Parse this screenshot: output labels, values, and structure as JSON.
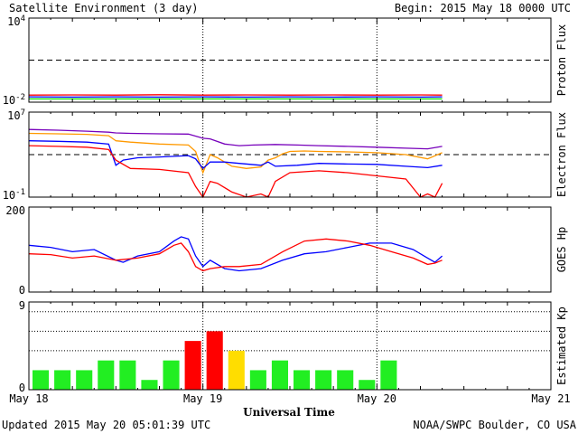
{
  "header": {
    "title": "Satellite Environment (3 day)",
    "begin": "Begin:  2015 May 18 0000 UTC"
  },
  "footer": {
    "updated": "Updated 2015 May 20 05:01:39 UTC",
    "credit": "NOAA/SWPC Boulder, CO USA"
  },
  "chart_data": [
    {
      "type": "line",
      "ylabel": "Proton Flux",
      "scale": "log",
      "ylim": [
        0.01,
        10000
      ],
      "tick_labels": [
        {
          "base": "10",
          "exp": "4",
          "value": 10000
        },
        {
          "base": "10",
          "exp": "-2",
          "value": 0.01
        }
      ],
      "threshold": 10,
      "x_range_hours": [
        0,
        72
      ],
      "series": [
        {
          "color": "#ff0000",
          "x": [
            0,
            6,
            12,
            18,
            24,
            30,
            36,
            42,
            48,
            54,
            57
          ],
          "y": [
            0.032,
            0.033,
            0.032,
            0.034,
            0.032,
            0.033,
            0.032,
            0.033,
            0.032,
            0.033,
            0.032
          ]
        },
        {
          "color": "#0000ff",
          "x": [
            0,
            6,
            12,
            18,
            24,
            30,
            36,
            42,
            48,
            54,
            57
          ],
          "y": [
            0.024,
            0.023,
            0.024,
            0.023,
            0.024,
            0.023,
            0.024,
            0.023,
            0.024,
            0.023,
            0.024
          ]
        },
        {
          "color": "#00dd00",
          "x": [
            0,
            6,
            12,
            18,
            24,
            30,
            36,
            42,
            48,
            54,
            57
          ],
          "y": [
            0.017,
            0.017,
            0.017,
            0.017,
            0.017,
            0.017,
            0.017,
            0.017,
            0.017,
            0.017,
            0.017
          ]
        }
      ]
    },
    {
      "type": "line",
      "ylabel": "Electron Flux",
      "scale": "log",
      "ylim": [
        0.1,
        10000000
      ],
      "tick_labels": [
        {
          "base": "10",
          "exp": "7",
          "value": 10000000
        },
        {
          "base": "10",
          "exp": "-1",
          "value": 0.1
        }
      ],
      "threshold": 1000,
      "x_range_hours": [
        0,
        72
      ],
      "series": [
        {
          "color": "#7700bb",
          "x": [
            0,
            4,
            8,
            11,
            12,
            14,
            18,
            22,
            24,
            25,
            27,
            29,
            31,
            34,
            37,
            40,
            44,
            48,
            52,
            55,
            57
          ],
          "y": [
            230000,
            200000,
            160000,
            130000,
            110000,
            100000,
            90000,
            85000,
            35000,
            30000,
            10000,
            7000,
            8000,
            9000,
            8000,
            7000,
            6000,
            5000,
            4000,
            3500,
            6000
          ]
        },
        {
          "color": "#ff9900",
          "x": [
            0,
            4,
            8,
            11,
            12,
            14,
            18,
            22,
            23,
            24,
            25,
            26,
            28,
            30,
            32,
            33,
            34,
            35,
            36,
            38,
            40,
            44,
            48,
            52,
            55,
            57
          ],
          "y": [
            100000,
            90000,
            80000,
            60000,
            20000,
            15000,
            10000,
            8000,
            2000,
            20,
            1000,
            500,
            80,
            50,
            70,
            300,
            500,
            1200,
            2000,
            2200,
            2000,
            1800,
            1500,
            1000,
            400,
            1500
          ]
        },
        {
          "color": "#0000ff",
          "x": [
            0,
            4,
            8,
            11,
            12,
            13,
            15,
            18,
            22,
            23,
            24,
            25,
            27,
            29,
            32,
            33,
            34,
            37,
            40,
            44,
            48,
            52,
            55,
            57
          ],
          "y": [
            20000,
            18000,
            15000,
            10000,
            100,
            300,
            500,
            600,
            800,
            400,
            50,
            200,
            200,
            150,
            100,
            200,
            80,
            100,
            150,
            130,
            120,
            80,
            60,
            100
          ]
        },
        {
          "color": "#ff0000",
          "x": [
            0,
            4,
            8,
            11,
            12,
            14,
            18,
            22,
            23,
            24,
            25,
            26,
            28,
            30,
            32,
            33,
            34,
            36,
            40,
            44,
            48,
            52,
            54,
            55,
            56,
            57
          ],
          "y": [
            7000,
            6000,
            5000,
            3000,
            300,
            50,
            40,
            20,
            1,
            0.1,
            3,
            2,
            0.3,
            0.1,
            0.2,
            0.1,
            3,
            20,
            30,
            20,
            10,
            5,
            0.1,
            0.2,
            0.1,
            2
          ]
        }
      ]
    },
    {
      "type": "line",
      "ylabel": "GOES Hp",
      "scale": "linear",
      "ylim": [
        0,
        200
      ],
      "tick_labels": [
        {
          "base": "200",
          "exp": "",
          "value": 200
        },
        {
          "base": "0",
          "exp": "",
          "value": 0
        }
      ],
      "x_range_hours": [
        0,
        72
      ],
      "series": [
        {
          "color": "#0000ff",
          "x": [
            0,
            3,
            6,
            9,
            12,
            13,
            15,
            18,
            20,
            21,
            22,
            23,
            24,
            25,
            27,
            29,
            32,
            35,
            38,
            41,
            44,
            47,
            50,
            53,
            55,
            56,
            57
          ],
          "y": [
            110,
            105,
            95,
            100,
            75,
            70,
            85,
            95,
            120,
            130,
            125,
            85,
            60,
            75,
            55,
            50,
            55,
            75,
            90,
            95,
            105,
            115,
            115,
            100,
            80,
            70,
            85
          ]
        },
        {
          "color": "#ff0000",
          "x": [
            0,
            3,
            6,
            9,
            12,
            15,
            18,
            20,
            21,
            22,
            23,
            24,
            25,
            27,
            29,
            32,
            35,
            38,
            41,
            44,
            47,
            50,
            53,
            55,
            56,
            57
          ],
          "y": [
            90,
            88,
            80,
            85,
            75,
            80,
            90,
            110,
            115,
            95,
            60,
            50,
            55,
            60,
            60,
            65,
            95,
            120,
            125,
            120,
            110,
            95,
            80,
            65,
            68,
            75
          ]
        }
      ]
    },
    {
      "type": "bar",
      "ylabel": "Estimated Kp",
      "scale": "linear",
      "ylim": [
        0,
        9
      ],
      "tick_labels": [
        {
          "base": "9",
          "exp": "",
          "value": 9
        },
        {
          "base": "0",
          "exp": "",
          "value": 0
        }
      ],
      "dotted_levels": [
        4,
        6,
        8
      ],
      "bar_width_hours": 3,
      "values": [
        2,
        2,
        2,
        3,
        3,
        1,
        3,
        5,
        6,
        4,
        2,
        3,
        2,
        2,
        2,
        1,
        3
      ],
      "colors": [
        "#22ee22",
        "#22ee22",
        "#22ee22",
        "#22ee22",
        "#22ee22",
        "#22ee22",
        "#22ee22",
        "#ff0000",
        "#ff0000",
        "#ffdd00",
        "#22ee22",
        "#22ee22",
        "#22ee22",
        "#22ee22",
        "#22ee22",
        "#22ee22",
        "#22ee22"
      ]
    }
  ],
  "x_axis": {
    "xlabel": "Universal Time",
    "ticks": [
      {
        "hours": 0,
        "label": "May 18"
      },
      {
        "hours": 24,
        "label": "May 19"
      },
      {
        "hours": 48,
        "label": "May 20"
      },
      {
        "hours": 72,
        "label": "May 21"
      }
    ],
    "day_markers_hours": [
      24,
      48
    ]
  }
}
